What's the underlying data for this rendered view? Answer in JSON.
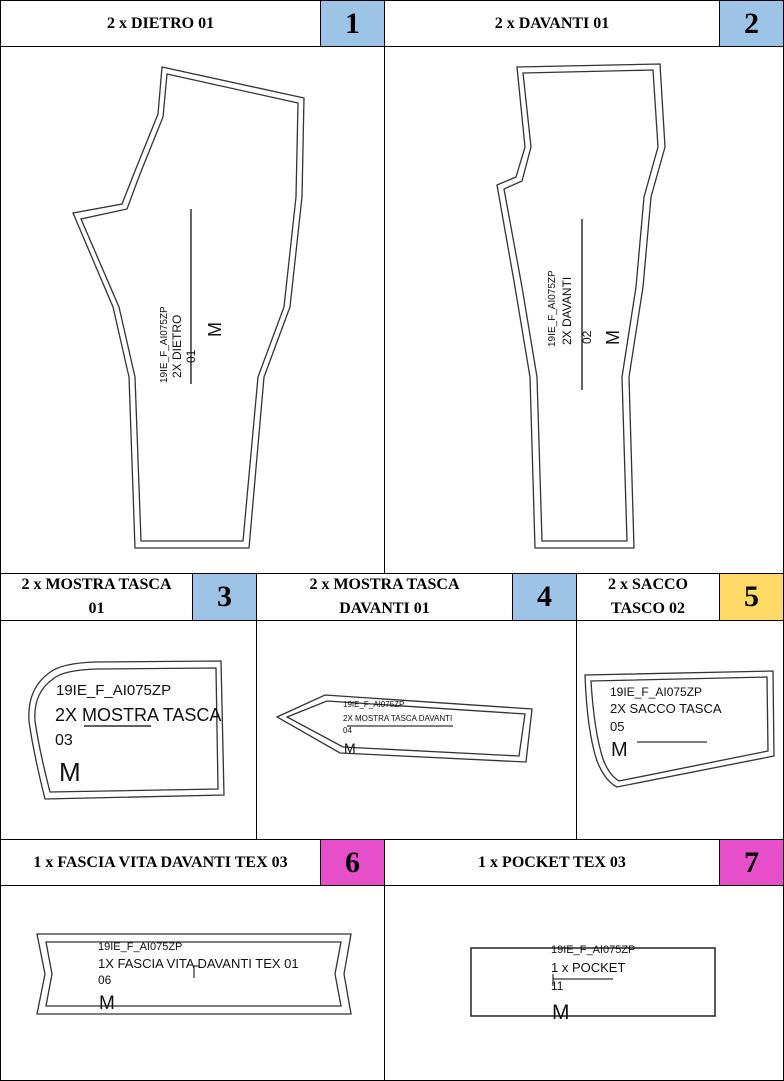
{
  "colors": {
    "blue": "#9dc3e6",
    "yellow": "#ffd966",
    "magenta": "#e64fc9",
    "line": "#000000",
    "outline": "#333333"
  },
  "pieces": [
    {
      "header": "2 x DIETRO 01",
      "number": "1",
      "color": "blue",
      "labels": [
        "19IE_F_AI075ZP",
        "2X DIETRO",
        "01",
        "M"
      ]
    },
    {
      "header": "2 x DAVANTI 01",
      "number": "2",
      "color": "blue",
      "labels": [
        "19IE_F_AI075ZP",
        "2X DAVANTI",
        "02",
        "M"
      ]
    },
    {
      "header_lines": [
        "2 x MOSTRA TASCA",
        "01"
      ],
      "number": "3",
      "color": "blue",
      "labels": [
        "19IE_F_AI075ZP",
        "2X MOSTRA TASCA",
        "03",
        "M"
      ]
    },
    {
      "header_lines": [
        "2 x MOSTRA TASCA",
        "DAVANTI 01"
      ],
      "number": "4",
      "color": "blue",
      "labels": [
        "19IE_F_AI075ZP",
        "2X MOSTRA TASCA DAVANTI",
        "04",
        "M"
      ]
    },
    {
      "header_lines": [
        "2 x SACCO",
        "TASCO 02"
      ],
      "number": "5",
      "color": "yellow",
      "labels": [
        "19IE_F_AI075ZP",
        "2X SACCO TASCA",
        "05",
        "M"
      ]
    },
    {
      "header": "1 x FASCIA VITA DAVANTI TEX 03",
      "number": "6",
      "color": "magenta",
      "labels": [
        "19IE_F_AI075ZP",
        "1X FASCIA VITA DAVANTI TEX 01",
        "06",
        "M"
      ]
    },
    {
      "header": "1 x POCKET TEX 03",
      "number": "7",
      "color": "magenta",
      "labels": [
        "19IE_F_AI075ZP",
        "1 x POCKET",
        "11",
        "M"
      ]
    }
  ]
}
